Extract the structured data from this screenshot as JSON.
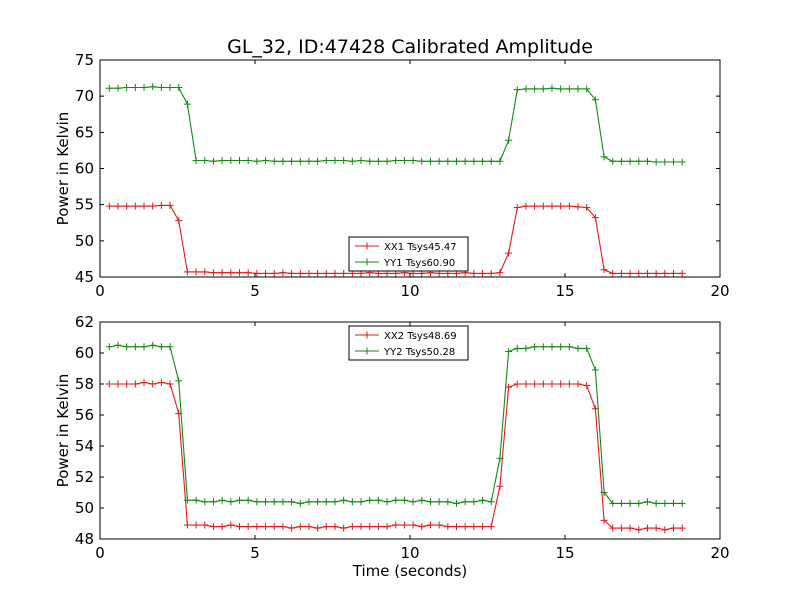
{
  "figure": {
    "title": "GL_32, ID:47428 Calibrated Amplitude",
    "xlabel": "Time (seconds)"
  },
  "colors": {
    "red": "#e41a1a",
    "green": "#138a13"
  },
  "chart_data": [
    {
      "type": "line",
      "ylabel": "Power in Kelvin",
      "xlim": [
        0,
        20
      ],
      "ylim": [
        45,
        75
      ],
      "xticks": [
        "0",
        "5",
        "10",
        "15",
        "20"
      ],
      "yticks": [
        "45",
        "50",
        "55",
        "60",
        "65",
        "70",
        "75"
      ],
      "legend_position": "lower-center",
      "x": [
        0.3,
        0.58,
        0.86,
        1.14,
        1.42,
        1.7,
        1.98,
        2.26,
        2.54,
        2.82,
        3.1,
        3.38,
        3.66,
        3.94,
        4.22,
        4.5,
        4.78,
        5.06,
        5.34,
        5.62,
        5.9,
        6.18,
        6.46,
        6.74,
        7.02,
        7.3,
        7.58,
        7.86,
        8.14,
        8.42,
        8.7,
        8.98,
        9.26,
        9.54,
        9.82,
        10.1,
        10.38,
        10.66,
        10.94,
        11.22,
        11.5,
        11.78,
        12.06,
        12.34,
        12.62,
        12.9,
        13.18,
        13.46,
        13.74,
        14.02,
        14.3,
        14.58,
        14.86,
        15.14,
        15.42,
        15.7,
        15.98,
        16.26,
        16.54,
        16.82,
        17.1,
        17.38,
        17.66,
        17.94,
        18.22,
        18.5,
        18.78
      ],
      "series": [
        {
          "name": "XX1 Tsys45.47",
          "color": "#e41a1a",
          "values": [
            54.8,
            54.8,
            54.8,
            54.8,
            54.8,
            54.8,
            54.9,
            54.9,
            52.8,
            45.7,
            45.7,
            45.7,
            45.6,
            45.6,
            45.6,
            45.6,
            45.6,
            45.5,
            45.5,
            45.5,
            45.6,
            45.5,
            45.5,
            45.5,
            45.5,
            45.5,
            45.5,
            45.5,
            45.5,
            45.5,
            45.6,
            45.5,
            45.5,
            45.5,
            45.6,
            45.5,
            45.5,
            45.6,
            45.5,
            45.5,
            45.5,
            45.6,
            45.5,
            45.5,
            45.5,
            45.6,
            48.3,
            54.6,
            54.8,
            54.8,
            54.8,
            54.8,
            54.8,
            54.8,
            54.7,
            54.6,
            53.2,
            46.0,
            45.5,
            45.5,
            45.5,
            45.5,
            45.5,
            45.5,
            45.5,
            45.5,
            45.5
          ]
        },
        {
          "name": "YY1 Tsys60.90",
          "color": "#138a13",
          "values": [
            71.1,
            71.1,
            71.2,
            71.2,
            71.2,
            71.3,
            71.2,
            71.2,
            71.2,
            68.9,
            61.1,
            61.1,
            61.0,
            61.1,
            61.1,
            61.1,
            61.1,
            61.0,
            61.1,
            61.0,
            61.0,
            61.0,
            61.0,
            61.0,
            61.0,
            61.1,
            61.1,
            61.1,
            61.0,
            61.1,
            61.0,
            61.0,
            61.0,
            61.1,
            61.1,
            61.1,
            61.0,
            61.0,
            61.0,
            61.0,
            61.0,
            61.0,
            61.0,
            61.0,
            61.0,
            61.0,
            63.9,
            70.9,
            71.0,
            71.0,
            71.0,
            71.1,
            71.0,
            71.0,
            71.0,
            71.0,
            69.5,
            61.6,
            61.0,
            61.0,
            61.0,
            61.0,
            61.0,
            60.9,
            60.9,
            60.9,
            60.9
          ]
        }
      ]
    },
    {
      "type": "line",
      "ylabel": "Power in Kelvin",
      "xlim": [
        0,
        20
      ],
      "ylim": [
        48,
        62
      ],
      "xticks": [
        "0",
        "5",
        "10",
        "15",
        "20"
      ],
      "yticks": [
        "48",
        "50",
        "52",
        "54",
        "56",
        "58",
        "60",
        "62"
      ],
      "legend_position": "upper-center",
      "x": [
        0.3,
        0.58,
        0.86,
        1.14,
        1.42,
        1.7,
        1.98,
        2.26,
        2.54,
        2.82,
        3.1,
        3.38,
        3.66,
        3.94,
        4.22,
        4.5,
        4.78,
        5.06,
        5.34,
        5.62,
        5.9,
        6.18,
        6.46,
        6.74,
        7.02,
        7.3,
        7.58,
        7.86,
        8.14,
        8.42,
        8.7,
        8.98,
        9.26,
        9.54,
        9.82,
        10.1,
        10.38,
        10.66,
        10.94,
        11.22,
        11.5,
        11.78,
        12.06,
        12.34,
        12.62,
        12.9,
        13.18,
        13.46,
        13.74,
        14.02,
        14.3,
        14.58,
        14.86,
        15.14,
        15.42,
        15.7,
        15.98,
        16.26,
        16.54,
        16.82,
        17.1,
        17.38,
        17.66,
        17.94,
        18.22,
        18.5,
        18.78
      ],
      "series": [
        {
          "name": "XX2 Tsys48.69",
          "color": "#e41a1a",
          "values": [
            58.0,
            58.0,
            58.0,
            58.0,
            58.1,
            58.0,
            58.1,
            58.0,
            56.1,
            48.9,
            48.9,
            48.9,
            48.8,
            48.8,
            48.9,
            48.8,
            48.8,
            48.8,
            48.8,
            48.8,
            48.8,
            48.7,
            48.8,
            48.8,
            48.7,
            48.8,
            48.8,
            48.7,
            48.8,
            48.8,
            48.8,
            48.8,
            48.8,
            48.9,
            48.9,
            48.9,
            48.8,
            48.9,
            48.9,
            48.8,
            48.8,
            48.8,
            48.8,
            48.8,
            48.8,
            51.4,
            57.8,
            58.0,
            58.0,
            58.0,
            58.0,
            58.0,
            58.0,
            58.0,
            58.0,
            57.9,
            56.4,
            49.2,
            48.7,
            48.7,
            48.7,
            48.6,
            48.7,
            48.7,
            48.6,
            48.7,
            48.7
          ]
        },
        {
          "name": "YY2 Tsys50.28",
          "color": "#138a13",
          "values": [
            60.4,
            60.5,
            60.4,
            60.4,
            60.4,
            60.5,
            60.4,
            60.4,
            58.2,
            50.5,
            50.5,
            50.4,
            50.4,
            50.5,
            50.4,
            50.5,
            50.5,
            50.4,
            50.4,
            50.4,
            50.4,
            50.4,
            50.3,
            50.4,
            50.4,
            50.4,
            50.4,
            50.5,
            50.4,
            50.4,
            50.5,
            50.5,
            50.4,
            50.5,
            50.5,
            50.4,
            50.5,
            50.4,
            50.4,
            50.4,
            50.3,
            50.4,
            50.4,
            50.5,
            50.4,
            53.2,
            60.1,
            60.3,
            60.3,
            60.4,
            60.4,
            60.4,
            60.4,
            60.4,
            60.3,
            60.3,
            58.9,
            51.0,
            50.3,
            50.3,
            50.3,
            50.3,
            50.4,
            50.3,
            50.3,
            50.3,
            50.3
          ]
        }
      ]
    }
  ]
}
